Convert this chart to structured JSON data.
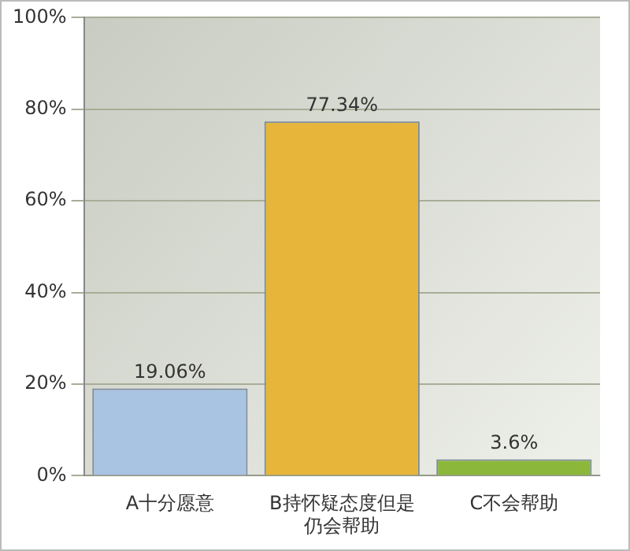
{
  "chart_data": {
    "type": "bar",
    "categories": [
      "A十分愿意",
      "B持怀疑态度但是仍会帮助",
      "C不会帮助"
    ],
    "values": [
      19.06,
      77.34,
      3.6
    ],
    "colors": [
      "#a9c3e2",
      "#e6b53a",
      "#8bb83a"
    ],
    "value_labels": [
      "19.06%",
      "77.34%",
      "3.6%"
    ],
    "ylim": [
      0,
      100
    ],
    "yticks": [
      {
        "value": 0,
        "label": "0%"
      },
      {
        "value": 20,
        "label": "20%"
      },
      {
        "value": 40,
        "label": "40%"
      },
      {
        "value": 60,
        "label": "60%"
      },
      {
        "value": 80,
        "label": "80%"
      },
      {
        "value": 100,
        "label": "100%"
      }
    ],
    "grid": "y"
  }
}
